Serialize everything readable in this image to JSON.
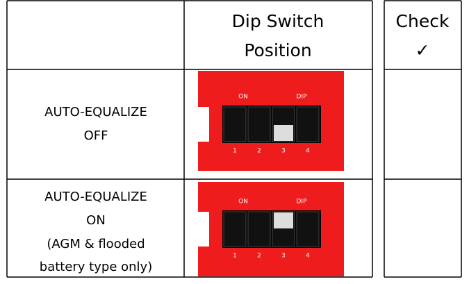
{
  "header": {
    "position": [
      "Dip Switch",
      "Position"
    ],
    "check": [
      "Check",
      "✓"
    ]
  },
  "rows": [
    {
      "label": [
        "AUTO-EQUALIZE",
        "OFF"
      ],
      "dip": {
        "on": "ON",
        "dip": "DIP",
        "numbers": [
          "1",
          "2",
          "3",
          "4"
        ]
      }
    },
    {
      "label": [
        "AUTO-EQUALIZE",
        "ON",
        "(AGM & flooded",
        "battery type only)"
      ],
      "dip": {
        "on": "ON",
        "dip": "DIP",
        "numbers": [
          "1",
          "2",
          "3",
          "4"
        ]
      }
    }
  ]
}
